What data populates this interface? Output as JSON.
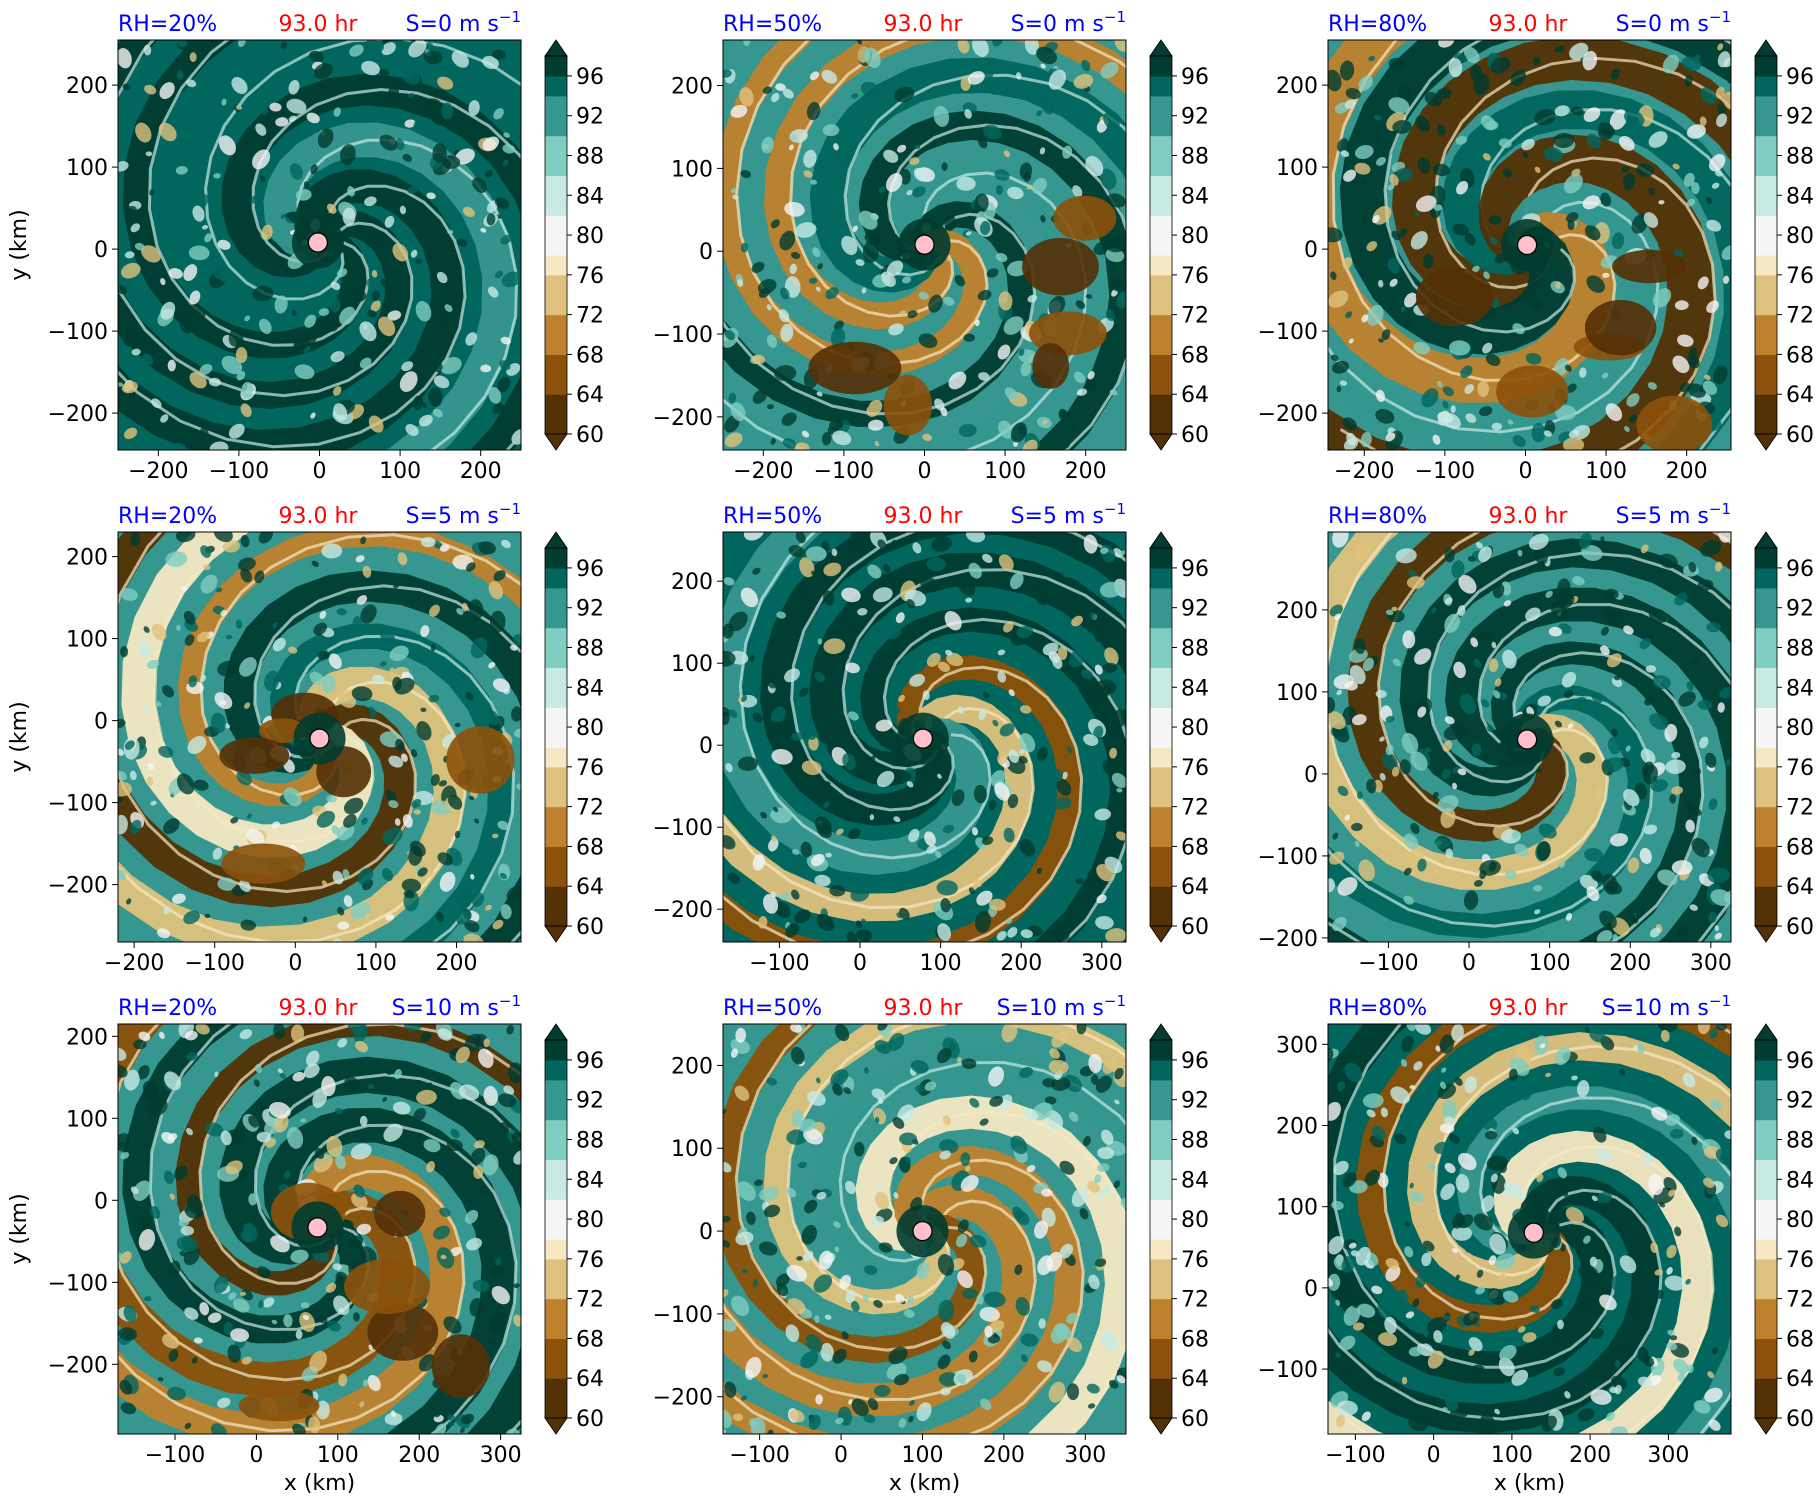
{
  "figure": {
    "colorbar_ticks": [
      60,
      64,
      68,
      72,
      76,
      80,
      84,
      88,
      92,
      96
    ],
    "colormap_colors": [
      "#543005",
      "#8c510a",
      "#bf812d",
      "#dfc27d",
      "#f6e8c3",
      "#f5f5f5",
      "#c7eae5",
      "#80cdc1",
      "#35978f",
      "#01665e",
      "#003c30"
    ],
    "marker_color": "#ffc0cb",
    "title_colors": {
      "rh": "#0000ff",
      "time": "#ff0000",
      "shear": "#0000ff"
    },
    "xlabel": "x (km)",
    "ylabel": "y (km)"
  },
  "chart_data": [
    {
      "type": "heatmap",
      "rh_label": "RH=20%",
      "time_label": "93.0 hr",
      "shear_label": "S=0 m s",
      "shear_exp": "−1",
      "xlim": [
        -250,
        250
      ],
      "ylim": [
        -245,
        255
      ],
      "xticks": [
        -200,
        -100,
        0,
        100,
        200
      ],
      "yticks": [
        -200,
        -100,
        0,
        100,
        200
      ],
      "center": [
        -2,
        8
      ],
      "regime": "moist",
      "moist_level": 0.75,
      "show_ylabel": true,
      "show_xlabel": false
    },
    {
      "type": "heatmap",
      "rh_label": "RH=50%",
      "time_label": "93.0 hr",
      "shear_label": "S=0 m s",
      "shear_exp": "−1",
      "xlim": [
        -250,
        250
      ],
      "ylim": [
        -240,
        255
      ],
      "xticks": [
        -200,
        -100,
        0,
        100,
        200
      ],
      "yticks": [
        -200,
        -100,
        0,
        100,
        200
      ],
      "center": [
        0,
        8
      ],
      "regime": "mixed",
      "moist_level": 0.55,
      "show_ylabel": false,
      "show_xlabel": false
    },
    {
      "type": "heatmap",
      "rh_label": "RH=80%",
      "time_label": "93.0 hr",
      "shear_label": "S=0 m s",
      "shear_exp": "−1",
      "xlim": [
        -245,
        255
      ],
      "ylim": [
        -245,
        255
      ],
      "xticks": [
        -200,
        -100,
        0,
        100,
        200
      ],
      "yticks": [
        -200,
        -100,
        0,
        100,
        200
      ],
      "center": [
        2,
        5
      ],
      "regime": "ring",
      "moist_level": 0.35,
      "show_ylabel": false,
      "show_xlabel": false
    },
    {
      "type": "heatmap",
      "rh_label": "RH=20%",
      "time_label": "93.0 hr",
      "shear_label": "S=5 m s",
      "shear_exp": "−1",
      "xlim": [
        -220,
        280
      ],
      "ylim": [
        -270,
        230
      ],
      "xticks": [
        -200,
        -100,
        0,
        100,
        200
      ],
      "yticks": [
        -200,
        -100,
        0,
        100,
        200
      ],
      "center": [
        30,
        -22
      ],
      "regime": "mixed",
      "moist_level": 0.5,
      "show_ylabel": true,
      "show_xlabel": false
    },
    {
      "type": "heatmap",
      "rh_label": "RH=50%",
      "time_label": "93.0 hr",
      "shear_label": "S=5 m s",
      "shear_exp": "−1",
      "xlim": [
        -170,
        330
      ],
      "ylim": [
        -240,
        260
      ],
      "xticks": [
        -100,
        0,
        100,
        200,
        300
      ],
      "yticks": [
        -200,
        -100,
        0,
        100,
        200
      ],
      "center": [
        78,
        8
      ],
      "regime": "moist",
      "moist_level": 0.7,
      "show_ylabel": false,
      "show_xlabel": false
    },
    {
      "type": "heatmap",
      "rh_label": "RH=80%",
      "time_label": "93.0 hr",
      "shear_label": "S=5 m s",
      "shear_exp": "−1",
      "xlim": [
        -175,
        325
      ],
      "ylim": [
        -205,
        295
      ],
      "xticks": [
        -100,
        0,
        100,
        200,
        300
      ],
      "yticks": [
        -200,
        -100,
        0,
        100,
        200
      ],
      "center": [
        72,
        42
      ],
      "regime": "mixed",
      "moist_level": 0.6,
      "show_ylabel": false,
      "show_xlabel": false
    },
    {
      "type": "heatmap",
      "rh_label": "RH=20%",
      "time_label": "93.0 hr",
      "shear_label": "S=10 m s",
      "shear_exp": "−1",
      "xlim": [
        -170,
        325
      ],
      "ylim": [
        -285,
        215
      ],
      "xticks": [
        -100,
        0,
        100,
        200,
        300
      ],
      "yticks": [
        -200,
        -100,
        0,
        100,
        200
      ],
      "center": [
        75,
        -33
      ],
      "regime": "dry",
      "moist_level": 0.4,
      "show_ylabel": true,
      "show_xlabel": true
    },
    {
      "type": "heatmap",
      "rh_label": "RH=50%",
      "time_label": "93.0 hr",
      "shear_label": "S=10 m s",
      "shear_exp": "−1",
      "xlim": [
        -145,
        350
      ],
      "ylim": [
        -245,
        250
      ],
      "xticks": [
        -100,
        0,
        100,
        200,
        300
      ],
      "yticks": [
        -200,
        -100,
        0,
        100,
        200
      ],
      "center": [
        100,
        0
      ],
      "regime": "moist",
      "moist_level": 0.6,
      "show_ylabel": false,
      "show_xlabel": true
    },
    {
      "type": "heatmap",
      "rh_label": "RH=80%",
      "time_label": "93.0 hr",
      "shear_label": "S=10 m s",
      "shear_exp": "−1",
      "xlim": [
        -135,
        380
      ],
      "ylim": [
        -180,
        325
      ],
      "xticks": [
        -100,
        0,
        100,
        200,
        300
      ],
      "yticks": [
        -100,
        0,
        100,
        200,
        300
      ],
      "center": [
        128,
        68
      ],
      "regime": "moist",
      "moist_level": 0.65,
      "show_ylabel": false,
      "show_xlabel": true
    }
  ]
}
